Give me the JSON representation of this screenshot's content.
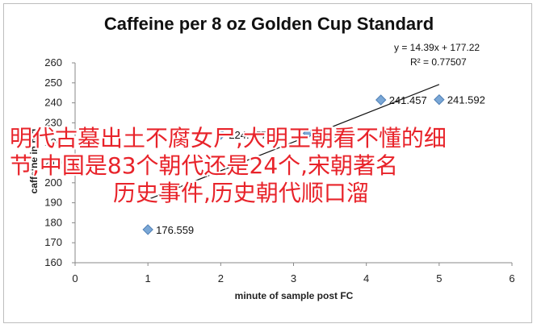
{
  "chart_data": {
    "type": "scatter",
    "title": "Caffeine per 8 oz Golden Cup Standard",
    "xlabel": "minute of sample post FC",
    "ylabel": "caffeine in mg",
    "xlim": [
      0,
      6
    ],
    "ylim": [
      160,
      260
    ],
    "x_ticks": [
      "0",
      "1",
      "2",
      "3",
      "4",
      "5",
      "6"
    ],
    "y_ticks": [
      "160",
      "170",
      "180",
      "190",
      "200",
      "210",
      "220",
      "230",
      "240",
      "250",
      "260"
    ],
    "grid": false,
    "marker_color": "#7aa7d6",
    "series": [
      {
        "points": [
          {
            "x": 1,
            "y": 176.559,
            "label": "176.559"
          },
          {
            "x": 2,
            "y": 224.177,
            "label": "224.177"
          },
          {
            "x": 3.2,
            "y": 224.781,
            "label": "224.781"
          },
          {
            "x": 4.2,
            "y": 241.457,
            "label": "241.457"
          },
          {
            "x": 5,
            "y": 241.592,
            "label": "241.592"
          }
        ]
      }
    ],
    "trendline": {
      "slope": 14.39,
      "intercept": 177.22,
      "x_range": [
        1,
        5
      ],
      "equation": "y = 14.39x + 177.22",
      "r2": "R² = 0.77507"
    }
  },
  "overlay_text": {
    "line1": "明代古墓出土不腐女尸,大明王朝看不懂的细",
    "line2": "节,中国是83个朝代还是24个,宋朝著名",
    "line3": "历史事件,历史朝代顺口溜"
  }
}
